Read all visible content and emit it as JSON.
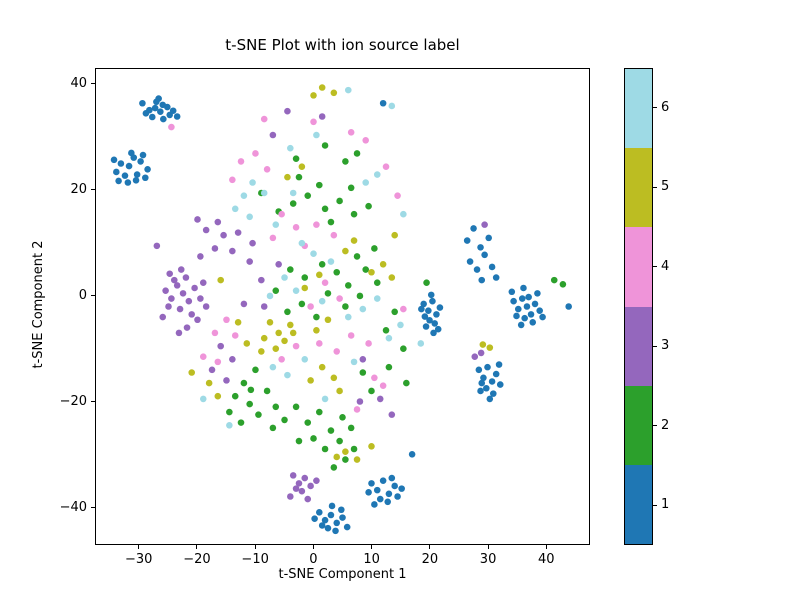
{
  "chart_data": {
    "type": "scatter",
    "title": "t-SNE Plot with ion source label",
    "xlabel": "t-SNE Component 1",
    "ylabel": "t-SNE Component 2",
    "xlim": [
      -37.5,
      47.5
    ],
    "ylim": [
      -47,
      43
    ],
    "xticks": [
      -30,
      -20,
      -10,
      0,
      10,
      20,
      30,
      40
    ],
    "yticks": [
      -40,
      -20,
      0,
      20,
      40
    ],
    "grid": false,
    "legend_position": "colorbar-right",
    "classes": [
      {
        "label": "1",
        "color": "#1f77b4"
      },
      {
        "label": "2",
        "color": "#2ca02c"
      },
      {
        "label": "3",
        "color": "#9467bd"
      },
      {
        "label": "4",
        "color": "#ef94d9"
      },
      {
        "label": "5",
        "color": "#bcbd22"
      },
      {
        "label": "6",
        "color": "#9edae5"
      }
    ],
    "points": [
      [
        -29.5,
        36.5,
        1
      ],
      [
        -28.3,
        35.2,
        1
      ],
      [
        -27.1,
        36.8,
        1
      ],
      [
        -26.4,
        34.9,
        1
      ],
      [
        -25.2,
        35.8,
        1
      ],
      [
        -27.8,
        33.9,
        1
      ],
      [
        -26.0,
        36.2,
        1
      ],
      [
        -24.8,
        34.3,
        1
      ],
      [
        -28.9,
        34.6,
        1
      ],
      [
        -25.9,
        33.5,
        1
      ],
      [
        -27.3,
        35.6,
        1
      ],
      [
        -24.2,
        35.1,
        1
      ],
      [
        -26.7,
        37.4,
        1
      ],
      [
        -23.5,
        34.0,
        1
      ],
      [
        -34.0,
        23.5,
        1
      ],
      [
        -33.2,
        25.1,
        1
      ],
      [
        -32.5,
        22.8,
        1
      ],
      [
        -31.8,
        24.6,
        1
      ],
      [
        -31.0,
        26.2,
        1
      ],
      [
        -30.4,
        23.0,
        1
      ],
      [
        -29.8,
        25.5,
        1
      ],
      [
        -29.0,
        22.4,
        1
      ],
      [
        -32.0,
        21.5,
        1
      ],
      [
        -30.6,
        21.9,
        1
      ],
      [
        -33.6,
        21.8,
        1
      ],
      [
        -28.6,
        24.0,
        1
      ],
      [
        -31.4,
        27.1,
        1
      ],
      [
        -29.4,
        26.7,
        1
      ],
      [
        -34.4,
        25.8,
        1
      ],
      [
        19.0,
        -1.5,
        1
      ],
      [
        19.8,
        -2.8,
        1
      ],
      [
        20.5,
        -1.0,
        1
      ],
      [
        21.2,
        -3.5,
        1
      ],
      [
        20.0,
        -4.6,
        1
      ],
      [
        19.4,
        -5.8,
        1
      ],
      [
        20.9,
        -5.2,
        1
      ],
      [
        21.8,
        -2.2,
        1
      ],
      [
        19.2,
        -3.9,
        1
      ],
      [
        20.3,
        0.2,
        1
      ],
      [
        21.5,
        -6.3,
        1
      ],
      [
        18.6,
        -2.5,
        1
      ],
      [
        20.7,
        -7.0,
        1
      ],
      [
        27.0,
        6.5,
        1
      ],
      [
        28.2,
        5.0,
        1
      ],
      [
        29.5,
        7.8,
        1
      ],
      [
        30.8,
        5.5,
        1
      ],
      [
        28.8,
        9.2,
        1
      ],
      [
        30.2,
        11.0,
        1
      ],
      [
        26.5,
        10.5,
        1
      ],
      [
        31.5,
        3.5,
        1
      ],
      [
        29.0,
        3.0,
        1
      ],
      [
        27.6,
        12.8,
        1
      ],
      [
        34.5,
        -1.0,
        1
      ],
      [
        35.3,
        -2.5,
        1
      ],
      [
        36.0,
        -0.5,
        1
      ],
      [
        36.8,
        -2.0,
        1
      ],
      [
        37.5,
        -3.5,
        1
      ],
      [
        38.2,
        -1.5,
        1
      ],
      [
        39.0,
        -2.8,
        1
      ],
      [
        36.4,
        -4.2,
        1
      ],
      [
        35.0,
        -3.8,
        1
      ],
      [
        37.1,
        -0.2,
        1
      ],
      [
        38.6,
        0.5,
        1
      ],
      [
        35.8,
        -5.5,
        1
      ],
      [
        37.8,
        -5.0,
        1
      ],
      [
        39.5,
        -4.0,
        1
      ],
      [
        36.2,
        1.5,
        1
      ],
      [
        34.2,
        0.8,
        1
      ],
      [
        44.0,
        -2.0,
        1
      ],
      [
        28.5,
        -14.0,
        1
      ],
      [
        29.3,
        -15.5,
        1
      ],
      [
        30.0,
        -13.5,
        1
      ],
      [
        30.8,
        -16.2,
        1
      ],
      [
        31.5,
        -14.8,
        1
      ],
      [
        29.8,
        -17.5,
        1
      ],
      [
        31.0,
        -18.5,
        1
      ],
      [
        28.8,
        -18.0,
        1
      ],
      [
        30.4,
        -19.5,
        1
      ],
      [
        32.2,
        -16.8,
        1
      ],
      [
        29.0,
        -16.5,
        1
      ],
      [
        32.0,
        -13.0,
        1
      ],
      [
        1.0,
        -41.0,
        1
      ],
      [
        2.0,
        -42.5,
        1
      ],
      [
        3.0,
        -41.5,
        1
      ],
      [
        4.0,
        -43.0,
        1
      ],
      [
        5.0,
        -42.0,
        1
      ],
      [
        2.5,
        -44.0,
        1
      ],
      [
        3.8,
        -44.5,
        1
      ],
      [
        1.5,
        -43.5,
        1
      ],
      [
        4.8,
        -40.5,
        1
      ],
      [
        0.2,
        -42.2,
        1
      ],
      [
        5.8,
        -43.8,
        1
      ],
      [
        3.2,
        -39.8,
        1
      ],
      [
        10.0,
        -35.5,
        1
      ],
      [
        11.0,
        -36.8,
        1
      ],
      [
        12.0,
        -35.0,
        1
      ],
      [
        13.0,
        -37.5,
        1
      ],
      [
        14.0,
        -36.0,
        1
      ],
      [
        11.5,
        -38.5,
        1
      ],
      [
        12.8,
        -39.0,
        1
      ],
      [
        10.5,
        -39.5,
        1
      ],
      [
        14.5,
        -38.0,
        1
      ],
      [
        13.5,
        -34.5,
        1
      ],
      [
        9.5,
        -37.2,
        1
      ],
      [
        15.2,
        -36.5,
        1
      ],
      [
        12.0,
        36.5,
        1
      ],
      [
        17.0,
        -30.0,
        1
      ],
      [
        -3.5,
        17.5,
        2
      ],
      [
        -1.0,
        19.0,
        2
      ],
      [
        2.0,
        16.5,
        2
      ],
      [
        4.5,
        18.0,
        2
      ],
      [
        -6.0,
        16.0,
        2
      ],
      [
        1.0,
        21.0,
        2
      ],
      [
        6.5,
        20.5,
        2
      ],
      [
        -2.5,
        22.5,
        2
      ],
      [
        3.0,
        14.0,
        2
      ],
      [
        7.0,
        15.5,
        2
      ],
      [
        -9.0,
        19.5,
        2
      ],
      [
        9.5,
        17.0,
        2
      ],
      [
        -4.0,
        5.0,
        2
      ],
      [
        -1.5,
        3.5,
        2
      ],
      [
        1.5,
        6.0,
        2
      ],
      [
        4.0,
        4.5,
        2
      ],
      [
        6.0,
        2.0,
        2
      ],
      [
        -6.5,
        1.0,
        2
      ],
      [
        -2.0,
        -1.5,
        2
      ],
      [
        2.5,
        0.5,
        2
      ],
      [
        5.5,
        -2.0,
        2
      ],
      [
        8.0,
        0.0,
        2
      ],
      [
        0.5,
        -4.0,
        2
      ],
      [
        -4.5,
        -3.0,
        2
      ],
      [
        9.0,
        5.0,
        2
      ],
      [
        11.0,
        2.5,
        2
      ],
      [
        7.5,
        7.5,
        2
      ],
      [
        10.5,
        9.0,
        2
      ],
      [
        -10.0,
        -14.0,
        2
      ],
      [
        -12.0,
        -16.5,
        2
      ],
      [
        -13.5,
        -19.0,
        2
      ],
      [
        -11.0,
        -20.5,
        2
      ],
      [
        -14.5,
        -22.0,
        2
      ],
      [
        -12.5,
        -24.0,
        2
      ],
      [
        -9.5,
        -22.5,
        2
      ],
      [
        -8.0,
        -18.0,
        2
      ],
      [
        -6.5,
        -21.0,
        2
      ],
      [
        -10.8,
        -17.8,
        2
      ],
      [
        -7.0,
        -25.0,
        2
      ],
      [
        -5.0,
        -23.5,
        2
      ],
      [
        -3.0,
        -21.0,
        2
      ],
      [
        -1.0,
        -24.0,
        2
      ],
      [
        1.0,
        -22.0,
        2
      ],
      [
        3.0,
        -25.5,
        2
      ],
      [
        5.0,
        -23.0,
        2
      ],
      [
        0.0,
        -27.0,
        2
      ],
      [
        2.0,
        -29.0,
        2
      ],
      [
        4.5,
        -27.5,
        2
      ],
      [
        6.5,
        -25.0,
        2
      ],
      [
        -2.5,
        -27.5,
        2
      ],
      [
        5.5,
        -31.0,
        2
      ],
      [
        7.0,
        -29.0,
        2
      ],
      [
        3.5,
        -32.5,
        2
      ],
      [
        41.5,
        3.0,
        2
      ],
      [
        43.0,
        2.2,
        2
      ],
      [
        19.5,
        2.5,
        2
      ],
      [
        14.0,
        -3.0,
        2
      ],
      [
        12.5,
        -6.5,
        2
      ],
      [
        15.5,
        -10.0,
        2
      ],
      [
        13.0,
        -13.5,
        2
      ],
      [
        10.0,
        -18.0,
        2
      ],
      [
        8.5,
        -14.5,
        2
      ],
      [
        16.0,
        -16.5,
        2
      ],
      [
        2.0,
        28.5,
        2
      ],
      [
        5.5,
        25.5,
        2
      ],
      [
        7.5,
        27.0,
        2
      ],
      [
        -3.0,
        26.0,
        2
      ],
      [
        -25.5,
        1.0,
        3
      ],
      [
        -24.5,
        -0.5,
        3
      ],
      [
        -23.5,
        2.0,
        3
      ],
      [
        -22.5,
        0.5,
        3
      ],
      [
        -21.5,
        -1.0,
        3
      ],
      [
        -20.5,
        1.5,
        3
      ],
      [
        -24.0,
        3.0,
        3
      ],
      [
        -22.0,
        3.5,
        3
      ],
      [
        -23.0,
        -2.5,
        3
      ],
      [
        -21.0,
        -3.5,
        3
      ],
      [
        -25.0,
        -2.0,
        3
      ],
      [
        -19.5,
        -0.5,
        3
      ],
      [
        -20.0,
        -4.5,
        3
      ],
      [
        -22.8,
        5.0,
        3
      ],
      [
        -19.0,
        2.5,
        3
      ],
      [
        -24.8,
        4.2,
        3
      ],
      [
        -26.0,
        -4.0,
        3
      ],
      [
        -18.5,
        -2.0,
        3
      ],
      [
        -21.8,
        -6.0,
        3
      ],
      [
        -23.2,
        -7.0,
        3
      ],
      [
        -17.0,
        9.0,
        3
      ],
      [
        -15.5,
        11.5,
        3
      ],
      [
        -18.5,
        12.5,
        3
      ],
      [
        -14.0,
        8.5,
        3
      ],
      [
        -16.5,
        14.0,
        3
      ],
      [
        -13.0,
        12.0,
        3
      ],
      [
        -19.5,
        7.5,
        3
      ],
      [
        -20.0,
        14.5,
        3
      ],
      [
        -27.0,
        9.5,
        3
      ],
      [
        -4.5,
        35.0,
        3
      ],
      [
        -7.0,
        30.5,
        3
      ],
      [
        1.5,
        34.0,
        3
      ],
      [
        -9.0,
        3.0,
        3
      ],
      [
        -11.0,
        6.5,
        3
      ],
      [
        -8.5,
        -2.0,
        3
      ],
      [
        -12.0,
        -1.5,
        3
      ],
      [
        -6.0,
        6.0,
        3
      ],
      [
        -10.5,
        10.0,
        3
      ],
      [
        -16.0,
        -9.5,
        3
      ],
      [
        -14.0,
        -12.0,
        3
      ],
      [
        -17.5,
        -14.0,
        3
      ],
      [
        -15.0,
        -16.0,
        3
      ],
      [
        -3.5,
        -34.0,
        3
      ],
      [
        -2.5,
        -35.5,
        3
      ],
      [
        -1.5,
        -34.5,
        3
      ],
      [
        -0.5,
        -36.0,
        3
      ],
      [
        -2.0,
        -37.0,
        3
      ],
      [
        -3.0,
        -36.5,
        3
      ],
      [
        -1.0,
        -38.5,
        3
      ],
      [
        0.5,
        -35.0,
        3
      ],
      [
        -4.0,
        -38.0,
        3
      ],
      [
        29.5,
        13.5,
        3
      ],
      [
        27.8,
        -11.5,
        3
      ],
      [
        28.9,
        -10.8,
        3
      ],
      [
        8.5,
        -12.0,
        3
      ],
      [
        11.5,
        -19.5,
        3
      ],
      [
        8.0,
        -20.0,
        3
      ],
      [
        13.5,
        -22.5,
        3
      ],
      [
        -24.5,
        32.0,
        4
      ],
      [
        -12.5,
        25.5,
        4
      ],
      [
        -10.0,
        27.0,
        4
      ],
      [
        -8.0,
        24.0,
        4
      ],
      [
        -14.0,
        22.0,
        4
      ],
      [
        -5.5,
        15.5,
        4
      ],
      [
        -3.0,
        13.0,
        4
      ],
      [
        -7.0,
        11.0,
        4
      ],
      [
        -1.5,
        9.5,
        4
      ],
      [
        3.5,
        11.5,
        4
      ],
      [
        0.5,
        13.5,
        4
      ],
      [
        -15.0,
        -4.5,
        4
      ],
      [
        -17.0,
        -7.0,
        4
      ],
      [
        -13.5,
        -7.5,
        4
      ],
      [
        -19.0,
        -11.5,
        4
      ],
      [
        -16.5,
        -12.5,
        4
      ],
      [
        2.0,
        2.5,
        4
      ],
      [
        4.5,
        -0.5,
        4
      ],
      [
        -0.5,
        -2.0,
        4
      ],
      [
        6.5,
        -7.5,
        4
      ],
      [
        9.5,
        -9.0,
        4
      ],
      [
        4.0,
        -10.5,
        4
      ],
      [
        1.0,
        -9.0,
        4
      ],
      [
        -3.0,
        -9.5,
        4
      ],
      [
        -5.5,
        -12.0,
        4
      ],
      [
        10.5,
        -15.5,
        4
      ],
      [
        12.0,
        -17.0,
        4
      ],
      [
        7.5,
        -21.5,
        4
      ],
      [
        12.5,
        24.5,
        4
      ],
      [
        9.0,
        29.5,
        4
      ],
      [
        6.5,
        31.0,
        4
      ],
      [
        14.5,
        19.0,
        4
      ],
      [
        15.5,
        -2.5,
        4
      ],
      [
        0.0,
        33.0,
        4
      ],
      [
        -8.5,
        33.5,
        4
      ],
      [
        1.5,
        39.5,
        5
      ],
      [
        3.5,
        38.5,
        5
      ],
      [
        0.0,
        38.0,
        5
      ],
      [
        -2.0,
        24.5,
        5
      ],
      [
        -4.5,
        22.5,
        5
      ],
      [
        -4.0,
        -5.5,
        5
      ],
      [
        -6.0,
        -7.0,
        5
      ],
      [
        -7.5,
        -5.0,
        5
      ],
      [
        -5.0,
        -8.5,
        5
      ],
      [
        -8.5,
        -8.0,
        5
      ],
      [
        -3.5,
        -7.0,
        5
      ],
      [
        -6.5,
        -10.0,
        5
      ],
      [
        -9.0,
        -10.5,
        5
      ],
      [
        -1.5,
        1.5,
        5
      ],
      [
        1.0,
        4.0,
        5
      ],
      [
        5.5,
        8.5,
        5
      ],
      [
        7.0,
        10.5,
        5
      ],
      [
        10.0,
        4.5,
        5
      ],
      [
        12.0,
        6.0,
        5
      ],
      [
        13.5,
        3.5,
        5
      ],
      [
        14.0,
        11.5,
        5
      ],
      [
        -11.5,
        -9.0,
        5
      ],
      [
        -13.0,
        -5.0,
        5
      ],
      [
        1.5,
        -13.5,
        5
      ],
      [
        3.5,
        -15.5,
        5
      ],
      [
        -0.5,
        -16.0,
        5
      ],
      [
        4.5,
        -18.0,
        5
      ],
      [
        5.5,
        -29.5,
        5
      ],
      [
        7.5,
        -31.0,
        5
      ],
      [
        4.0,
        -30.5,
        5
      ],
      [
        10.0,
        -28.5,
        5
      ],
      [
        29.2,
        -9.2,
        5
      ],
      [
        30.4,
        -9.8,
        5
      ],
      [
        -16.0,
        3.0,
        5
      ],
      [
        -18.0,
        -16.5,
        5
      ],
      [
        -16.5,
        -19.0,
        5
      ],
      [
        0.5,
        -6.5,
        5
      ],
      [
        2.5,
        -4.5,
        5
      ],
      [
        -21.0,
        -14.5,
        5
      ],
      [
        6.0,
        39.0,
        6
      ],
      [
        13.5,
        36.0,
        6
      ],
      [
        -10.5,
        21.5,
        6
      ],
      [
        -12.0,
        19.0,
        6
      ],
      [
        -8.5,
        19.5,
        6
      ],
      [
        -13.5,
        16.5,
        6
      ],
      [
        -11.0,
        15.0,
        6
      ],
      [
        -6.5,
        13.5,
        6
      ],
      [
        -3.5,
        19.5,
        6
      ],
      [
        9.0,
        21.5,
        6
      ],
      [
        11.0,
        23.0,
        6
      ],
      [
        15.5,
        15.5,
        6
      ],
      [
        -2.0,
        10.0,
        6
      ],
      [
        0.0,
        8.0,
        6
      ],
      [
        3.0,
        6.5,
        6
      ],
      [
        -5.0,
        3.5,
        6
      ],
      [
        -3.0,
        1.0,
        6
      ],
      [
        -7.5,
        0.0,
        6
      ],
      [
        1.5,
        -1.0,
        6
      ],
      [
        6.0,
        -4.0,
        6
      ],
      [
        8.5,
        -2.5,
        6
      ],
      [
        11.0,
        -0.5,
        6
      ],
      [
        13.0,
        -8.0,
        6
      ],
      [
        15.0,
        -5.5,
        6
      ],
      [
        18.5,
        -9.0,
        6
      ],
      [
        -1.5,
        -12.0,
        6
      ],
      [
        -4.5,
        -15.0,
        6
      ],
      [
        -7.0,
        -13.5,
        6
      ],
      [
        7.0,
        -12.5,
        6
      ],
      [
        -19.0,
        -19.5,
        6
      ],
      [
        -14.5,
        -24.5,
        6
      ],
      [
        2.0,
        -19.5,
        6
      ],
      [
        0.5,
        30.5,
        6
      ],
      [
        -4.0,
        28.0,
        6
      ]
    ]
  }
}
